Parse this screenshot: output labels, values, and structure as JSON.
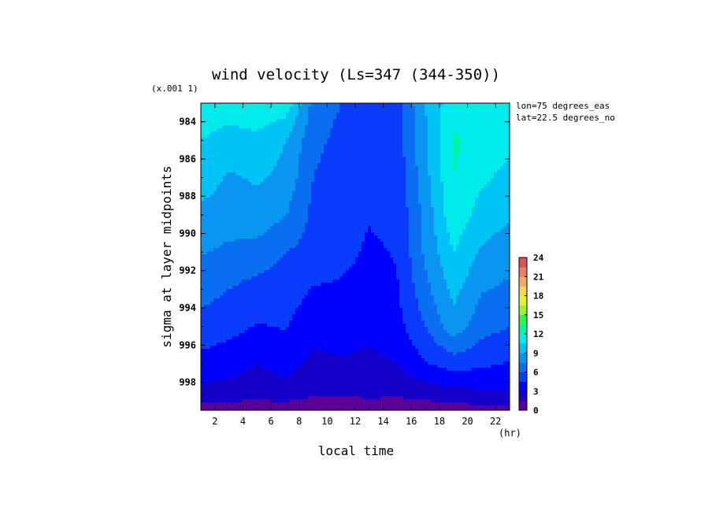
{
  "chart_data": {
    "type": "heatmap",
    "subtype": "filled-contour",
    "title": "wind velocity (Ls=347 (344-350))",
    "xlabel": "local time",
    "ylabel": "sigma at layer midpoints",
    "x_unit_label": "(hr)",
    "y_scale_label": "(x.001 1)",
    "annotations": [
      "lon=75 degrees_eas",
      "lat=22.5 degrees_no"
    ],
    "xlim": [
      1,
      23
    ],
    "ylim": [
      999.5,
      983
    ],
    "x_ticks": [
      2,
      4,
      6,
      8,
      10,
      12,
      14,
      16,
      18,
      20,
      22
    ],
    "y_ticks": [
      984,
      986,
      988,
      990,
      992,
      994,
      996,
      998
    ],
    "colorbar": {
      "levels": [
        0,
        1.5,
        3,
        4.5,
        6,
        7.5,
        9,
        10.5,
        12,
        13.5,
        15,
        16.5,
        18,
        19.5,
        21,
        22.5,
        24
      ],
      "tick_labels": [
        "0",
        "3",
        "6",
        "9",
        "12",
        "15",
        "18",
        "21",
        "24"
      ],
      "colors": [
        "#5a0096",
        "#1400c8",
        "#0000ff",
        "#0a3cff",
        "#0a6ef0",
        "#0a96f0",
        "#00c3f5",
        "#00ebeb",
        "#00f5a0",
        "#32f550",
        "#96f532",
        "#dcf532",
        "#f5d25a",
        "#f0aa64",
        "#e68264",
        "#dc505a"
      ]
    },
    "x": [
      1,
      3,
      5,
      7,
      9,
      11,
      13,
      15,
      17,
      19,
      21,
      23
    ],
    "y": [
      983,
      985,
      987,
      989,
      991,
      993,
      995,
      997,
      998.5,
      999.3,
      999.5
    ],
    "values": [
      [
        11.5,
        11.5,
        11.5,
        11.5,
        7.0,
        6.0,
        5.5,
        5.5,
        9.0,
        11.5,
        11.5,
        11.5
      ],
      [
        10.5,
        9.8,
        10.2,
        9.0,
        6.5,
        5.5,
        5.2,
        5.3,
        8.8,
        12.2,
        11.5,
        11.0
      ],
      [
        9.8,
        8.8,
        9.2,
        8.6,
        6.0,
        5.0,
        4.8,
        5.0,
        8.5,
        12.0,
        10.8,
        10.0
      ],
      [
        8.6,
        8.2,
        8.4,
        7.6,
        5.6,
        4.9,
        4.6,
        4.8,
        8.0,
        11.6,
        9.8,
        9.2
      ],
      [
        7.6,
        7.2,
        7.0,
        6.0,
        5.5,
        4.9,
        4.3,
        4.6,
        7.8,
        10.5,
        8.8,
        8.2
      ],
      [
        6.6,
        6.0,
        5.4,
        5.2,
        4.4,
        4.3,
        4.0,
        4.4,
        7.0,
        9.5,
        7.6,
        7.2
      ],
      [
        5.4,
        5.0,
        4.4,
        4.6,
        3.6,
        3.8,
        3.4,
        4.0,
        6.0,
        8.4,
        6.6,
        6.0
      ],
      [
        4.0,
        3.6,
        3.0,
        3.6,
        2.6,
        2.8,
        2.6,
        3.0,
        4.4,
        5.2,
        4.8,
        4.4
      ],
      [
        2.6,
        2.4,
        2.2,
        2.4,
        1.8,
        1.8,
        1.9,
        1.8,
        2.2,
        2.6,
        2.8,
        2.8
      ],
      [
        1.0,
        1.0,
        1.0,
        1.0,
        0.8,
        0.8,
        1.0,
        0.9,
        1.0,
        1.2,
        1.3,
        1.3
      ],
      [
        0.3,
        0.3,
        0.3,
        0.3,
        0.3,
        0.3,
        0.3,
        0.3,
        0.3,
        0.3,
        0.3,
        0.3
      ]
    ]
  }
}
